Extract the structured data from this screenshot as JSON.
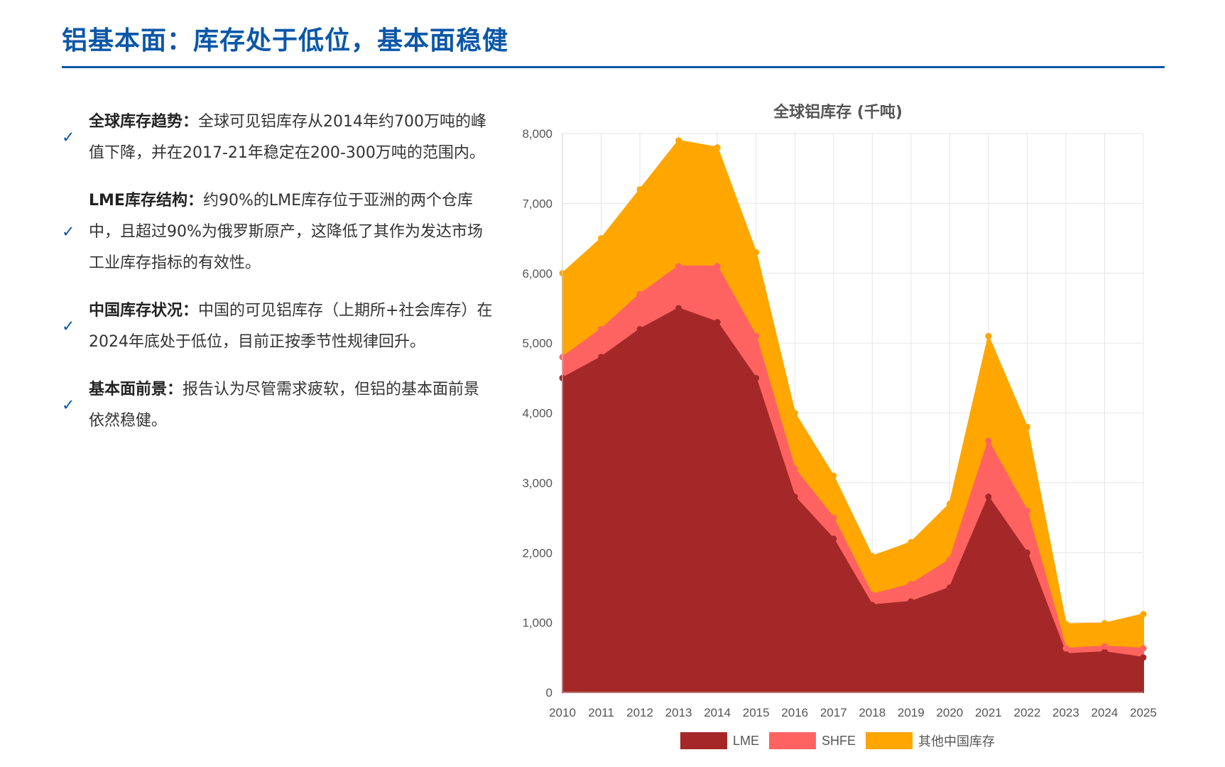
{
  "header": {
    "title": "铝基本面：库存处于低位，基本面稳健"
  },
  "bullets": [
    {
      "lead": "全球库存趋势：",
      "text": "全球可见铝库存从2014年约700万吨的峰值下降，并在2017-21年稳定在200-300万吨的范围内。",
      "icon": "check-icon"
    },
    {
      "lead": "LME库存结构：",
      "text": "约90%的LME库存位于亚洲的两个仓库中，且超过90%为俄罗斯原产，这降低了其作为发达市场工业库存指标的有效性。",
      "icon": "check-icon"
    },
    {
      "lead": "中国库存状况：",
      "text": "中国的可见铝库存（上期所+社会库存）在2024年底处于低位，目前正按季节性规律回升。",
      "icon": "check-icon"
    },
    {
      "lead": "基本面前景：",
      "text": "报告认为尽管需求疲软，但铝的基本面前景依然稳健。",
      "icon": "check-icon"
    }
  ],
  "chart_data": {
    "type": "area",
    "stacked": true,
    "title": "全球铝库存 (千吨)",
    "xlabel": "",
    "ylabel": "",
    "categories": [
      "2010",
      "2011",
      "2012",
      "2013",
      "2014",
      "2015",
      "2016",
      "2017",
      "2018",
      "2019",
      "2020",
      "2021",
      "2022",
      "2023",
      "2024",
      "2025"
    ],
    "ylim": [
      0,
      8000
    ],
    "yticks": [
      0,
      1000,
      2000,
      3000,
      4000,
      5000,
      6000,
      7000,
      8000
    ],
    "ytick_labels": [
      "0",
      "1,000",
      "2,000",
      "3,000",
      "4,000",
      "5,000",
      "6,000",
      "7,000",
      "8,000"
    ],
    "grid": true,
    "legend_position": "bottom",
    "series": [
      {
        "name": "LME",
        "color": "#a42828",
        "values": [
          4500,
          4800,
          5200,
          5500,
          5300,
          4500,
          2800,
          2200,
          1250,
          1300,
          1500,
          2800,
          2000,
          550,
          580,
          500
        ]
      },
      {
        "name": "SHFE",
        "color": "#ff6361",
        "values": [
          300,
          400,
          500,
          600,
          800,
          600,
          400,
          300,
          150,
          250,
          400,
          800,
          600,
          80,
          80,
          130
        ]
      },
      {
        "name": "其他中国库存",
        "color": "#ffa600",
        "values": [
          1200,
          1300,
          1500,
          1800,
          1700,
          1200,
          800,
          600,
          550,
          600,
          800,
          1500,
          1200,
          350,
          330,
          490
        ]
      }
    ]
  }
}
